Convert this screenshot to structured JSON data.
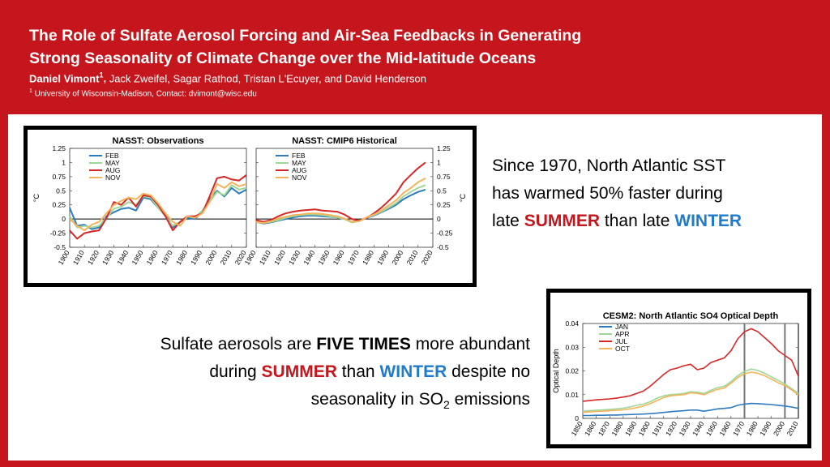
{
  "header": {
    "title_line1": "The Role of Sulfate Aerosol Forcing and Air-Sea Feedbacks in Generating",
    "title_line2": "Strong Seasonality of Climate Change over the Mid-latitude Oceans",
    "lead_author": "Daniel Vimont",
    "lead_sup": "1",
    "lead_comma": ",",
    "coauthors": " Jack Zweifel, Sagar Rathod, Tristan L'Ecuyer, and David Henderson",
    "affil_sup": "1",
    "affiliation": " University of Wisconsin-Madison, Contact: dvimont@wisc.edu"
  },
  "statement1": {
    "line1": "Since 1970, North Atlantic SST",
    "line2": "has warmed 50% faster during",
    "line3_pre": "late ",
    "line3_summer": "SUMMER",
    "line3_mid": " than late ",
    "line3_winter": "WINTER"
  },
  "statement2": {
    "l1_pre": "Sulfate aerosols are ",
    "l1_bold": "FIVE TIMES",
    "l1_post": " more abundant",
    "l2_pre": "during ",
    "l2_summer": "SUMMER",
    "l2_mid": " than ",
    "l2_winter": "WINTER",
    "l2_post": " despite no",
    "l3_pre": "seasonality in SO",
    "l3_sub": "2",
    "l3_post": " emissions"
  },
  "colors": {
    "red": "#c4161c",
    "blue": "#1f7ccc",
    "feb": "#2e7bbf",
    "may": "#9fd79a",
    "aug": "#d62728",
    "nov": "#f5b35a",
    "jan": "#2e7bbf",
    "apr": "#9fd79a",
    "jul": "#d62728",
    "oct": "#f5b35a"
  },
  "chart_data": [
    {
      "type": "line",
      "title": "NASST: Observations",
      "ylabel": "°C",
      "ylim": [
        -0.5,
        1.25
      ],
      "yticks": [
        "1.25",
        "1",
        "0.75",
        "0.5",
        "0.25",
        "0",
        "-0.25",
        "-0.5"
      ],
      "xticks": [
        "1900",
        "1910",
        "1920",
        "1930",
        "1940",
        "1950",
        "1960",
        "1970",
        "1980",
        "1990",
        "2000",
        "2010",
        "2020"
      ],
      "x": [
        1900,
        1905,
        1910,
        1915,
        1920,
        1925,
        1930,
        1935,
        1940,
        1945,
        1950,
        1955,
        1960,
        1965,
        1970,
        1975,
        1980,
        1985,
        1990,
        1995,
        2000,
        2005,
        2010,
        2015,
        2020
      ],
      "series": [
        {
          "name": "FEB",
          "key": "feb",
          "values": [
            0.2,
            -0.12,
            -0.1,
            -0.18,
            -0.15,
            0.05,
            0.12,
            0.18,
            0.2,
            0.15,
            0.38,
            0.35,
            0.2,
            0.1,
            -0.15,
            -0.05,
            0.02,
            0,
            0.12,
            0.35,
            0.5,
            0.4,
            0.55,
            0.45,
            0.52
          ]
        },
        {
          "name": "MAY",
          "key": "may",
          "values": [
            0.05,
            -0.15,
            -0.12,
            -0.15,
            -0.12,
            0.02,
            0.18,
            0.22,
            0.3,
            0.25,
            0.4,
            0.38,
            0.2,
            0.05,
            -0.12,
            -0.05,
            0.05,
            0.02,
            0.15,
            0.3,
            0.48,
            0.42,
            0.6,
            0.52,
            0.55
          ]
        },
        {
          "name": "AUG",
          "key": "aug",
          "values": [
            -0.2,
            -0.35,
            -0.25,
            -0.22,
            -0.2,
            0.02,
            0.3,
            0.25,
            0.38,
            0.22,
            0.42,
            0.4,
            0.25,
            0.05,
            -0.2,
            -0.05,
            0.05,
            0.05,
            0.1,
            0.4,
            0.72,
            0.75,
            0.7,
            0.68,
            0.78
          ]
        },
        {
          "name": "NOV",
          "key": "nov",
          "values": [
            0,
            -0.12,
            -0.2,
            -0.1,
            -0.05,
            0.1,
            0.25,
            0.32,
            0.38,
            0.35,
            0.45,
            0.42,
            0.28,
            0.1,
            -0.05,
            -0.12,
            0.05,
            0.02,
            0.1,
            0.3,
            0.62,
            0.55,
            0.65,
            0.58,
            0.62
          ]
        }
      ]
    },
    {
      "type": "line",
      "title": "NASST: CMIP6 Historical",
      "ylabel": "°C",
      "ylim": [
        -0.5,
        1.25
      ],
      "yticks": [
        "1.25",
        "1",
        "0.75",
        "0.5",
        "0.25",
        "0",
        "-0.25",
        "-0.5"
      ],
      "xticks": [
        "1900",
        "1910",
        "1920",
        "1930",
        "1940",
        "1950",
        "1960",
        "1970",
        "1980",
        "1990",
        "2000",
        "2010",
        "2020"
      ],
      "x": [
        1900,
        1905,
        1910,
        1915,
        1920,
        1925,
        1930,
        1935,
        1940,
        1945,
        1950,
        1955,
        1960,
        1965,
        1970,
        1975,
        1980,
        1985,
        1990,
        1995,
        2000,
        2005,
        2010,
        2015
      ],
      "series": [
        {
          "name": "FEB",
          "key": "feb",
          "values": [
            -0.05,
            -0.08,
            -0.06,
            -0.03,
            0,
            0.03,
            0.05,
            0.06,
            0.06,
            0.05,
            0.04,
            0.03,
            0,
            -0.05,
            -0.03,
            0.02,
            0.06,
            0.12,
            0.18,
            0.25,
            0.35,
            0.42,
            0.48,
            0.52
          ]
        },
        {
          "name": "MAY",
          "key": "may",
          "values": [
            -0.05,
            -0.07,
            -0.05,
            -0.02,
            0.02,
            0.05,
            0.07,
            0.08,
            0.08,
            0.07,
            0.05,
            0.03,
            0,
            -0.06,
            -0.04,
            0.02,
            0.07,
            0.13,
            0.2,
            0.28,
            0.4,
            0.48,
            0.55,
            0.6
          ]
        },
        {
          "name": "AUG",
          "key": "aug",
          "values": [
            -0.02,
            -0.05,
            -0.02,
            0.05,
            0.1,
            0.13,
            0.15,
            0.16,
            0.17,
            0.15,
            0.14,
            0.13,
            0.08,
            0,
            -0.03,
            0.02,
            0.1,
            0.2,
            0.32,
            0.45,
            0.65,
            0.78,
            0.9,
            1.0
          ]
        },
        {
          "name": "NOV",
          "key": "nov",
          "values": [
            -0.05,
            -0.07,
            -0.04,
            0.01,
            0.04,
            0.07,
            0.08,
            0.1,
            0.1,
            0.09,
            0.07,
            0.05,
            0.01,
            -0.05,
            -0.04,
            0.03,
            0.08,
            0.15,
            0.24,
            0.33,
            0.46,
            0.55,
            0.65,
            0.72
          ]
        }
      ]
    },
    {
      "type": "line",
      "title": "CESM2: North Atlantic SO4 Optical Depth",
      "ylabel": "Optical Depth",
      "ylim": [
        0,
        0.04
      ],
      "yticks": [
        "0.04",
        "0.03",
        "0.02",
        "0.01",
        "0"
      ],
      "xticks": [
        "1850",
        "1860",
        "1870",
        "1880",
        "1890",
        "1900",
        "1910",
        "1920",
        "1930",
        "1940",
        "1950",
        "1960",
        "1970",
        "1980",
        "1990",
        "2000",
        "2010"
      ],
      "vlines": [
        1970,
        2000,
        2010
      ],
      "x": [
        1850,
        1855,
        1860,
        1865,
        1870,
        1875,
        1880,
        1885,
        1890,
        1895,
        1900,
        1905,
        1910,
        1915,
        1920,
        1925,
        1930,
        1935,
        1940,
        1945,
        1950,
        1955,
        1960,
        1965,
        1970,
        1975,
        1980,
        1985,
        1990,
        1995,
        2000,
        2005,
        2010
      ],
      "series": [
        {
          "name": "JAN",
          "key": "jan",
          "values": [
            0.0012,
            0.0012,
            0.0013,
            0.0013,
            0.0014,
            0.0014,
            0.0015,
            0.0016,
            0.0017,
            0.0018,
            0.002,
            0.0022,
            0.0025,
            0.0028,
            0.003,
            0.0032,
            0.0035,
            0.0035,
            0.003,
            0.0035,
            0.004,
            0.0042,
            0.0045,
            0.0055,
            0.006,
            0.0063,
            0.0062,
            0.006,
            0.0058,
            0.0055,
            0.0052,
            0.0048,
            0.0042
          ]
        },
        {
          "name": "APR",
          "key": "apr",
          "values": [
            0.003,
            0.0032,
            0.0034,
            0.0036,
            0.0038,
            0.004,
            0.0043,
            0.0048,
            0.0055,
            0.006,
            0.007,
            0.0085,
            0.0095,
            0.01,
            0.0102,
            0.0105,
            0.0112,
            0.011,
            0.0105,
            0.0118,
            0.013,
            0.0135,
            0.0155,
            0.018,
            0.0198,
            0.0208,
            0.0202,
            0.019,
            0.0175,
            0.016,
            0.0145,
            0.0125,
            0.0105
          ]
        },
        {
          "name": "JUL",
          "key": "jul",
          "values": [
            0.0072,
            0.0075,
            0.0078,
            0.008,
            0.0082,
            0.0085,
            0.009,
            0.0095,
            0.0105,
            0.0115,
            0.0135,
            0.016,
            0.0185,
            0.0205,
            0.0212,
            0.0222,
            0.0228,
            0.0205,
            0.0212,
            0.0235,
            0.0245,
            0.0255,
            0.0285,
            0.0335,
            0.0365,
            0.0378,
            0.0365,
            0.034,
            0.0315,
            0.0285,
            0.0265,
            0.0245,
            0.0178
          ]
        },
        {
          "name": "OCT",
          "key": "oct",
          "values": [
            0.0025,
            0.0027,
            0.0029,
            0.003,
            0.0032,
            0.0034,
            0.0036,
            0.004,
            0.0045,
            0.0052,
            0.0062,
            0.0075,
            0.0088,
            0.0095,
            0.0098,
            0.01,
            0.0108,
            0.0105,
            0.01,
            0.0112,
            0.0122,
            0.0128,
            0.0148,
            0.0172,
            0.0188,
            0.0195,
            0.019,
            0.018,
            0.0165,
            0.015,
            0.0138,
            0.012,
            0.0098
          ]
        }
      ]
    }
  ]
}
